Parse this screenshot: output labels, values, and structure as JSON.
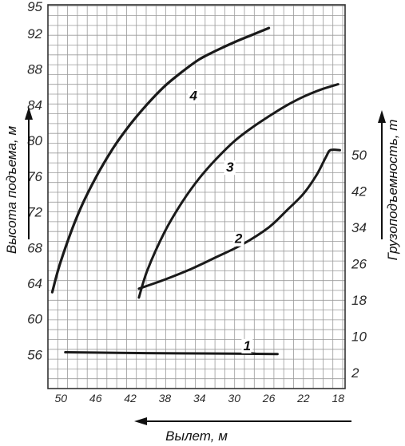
{
  "chart_data": {
    "type": "line",
    "xlabel": "Вылет, м",
    "ylabel_left": "Высота подъема, м",
    "ylabel_right": "Грузоподъемность, т",
    "x_ticks": [
      "50",
      "46",
      "42",
      "38",
      "34",
      "30",
      "26",
      "22",
      "18"
    ],
    "x_range": [
      51.5,
      17.2
    ],
    "left_ticks": [
      {
        "label": "95",
        "value": 95
      },
      {
        "label": "92",
        "value": 92
      },
      {
        "label": "88",
        "value": 88
      },
      {
        "label": "84",
        "value": 84
      },
      {
        "label": "80",
        "value": 80
      },
      {
        "label": "76",
        "value": 76
      },
      {
        "label": "72",
        "value": 72
      },
      {
        "label": "68",
        "value": 68
      },
      {
        "label": "64",
        "value": 64
      },
      {
        "label": "60",
        "value": 60
      },
      {
        "label": "56",
        "value": 56
      }
    ],
    "left_range": [
      52.2,
      95.2
    ],
    "right_ticks": [
      {
        "label": "50",
        "value": 50
      },
      {
        "label": "42",
        "value": 42
      },
      {
        "label": "34",
        "value": 34
      },
      {
        "label": "26",
        "value": 26
      },
      {
        "label": "18",
        "value": 18
      },
      {
        "label": "10",
        "value": 10
      },
      {
        "label": "2",
        "value": 2
      }
    ],
    "right_range": [
      -1.5,
      83
    ],
    "grid": true,
    "series": [
      {
        "name": "1",
        "axis": "right",
        "points": [
          [
            49.5,
            6.5
          ],
          [
            40,
            6.3
          ],
          [
            30,
            6.2
          ],
          [
            25,
            6.1
          ]
        ]
      },
      {
        "name": "2",
        "axis": "right",
        "points": [
          [
            41,
            20.5
          ],
          [
            38,
            22.5
          ],
          [
            35,
            24.8
          ],
          [
            32,
            27.5
          ],
          [
            29,
            30.3
          ],
          [
            26,
            34
          ],
          [
            24,
            37.6
          ],
          [
            22,
            41.4
          ],
          [
            20.5,
            45.5
          ],
          [
            19.4,
            49.5
          ],
          [
            18.9,
            51
          ],
          [
            17.8,
            51
          ]
        ]
      },
      {
        "name": "3",
        "axis": "left",
        "points": [
          [
            41,
            62.4
          ],
          [
            40,
            65.5
          ],
          [
            38,
            69.8
          ],
          [
            36,
            73.1
          ],
          [
            34,
            75.8
          ],
          [
            32,
            78
          ],
          [
            30,
            79.9
          ],
          [
            28,
            81.4
          ],
          [
            26,
            82.7
          ],
          [
            24,
            83.9
          ],
          [
            22,
            84.9
          ],
          [
            20,
            85.7
          ],
          [
            18,
            86.3
          ]
        ]
      },
      {
        "name": "4",
        "axis": "left",
        "points": [
          [
            51,
            63
          ],
          [
            50,
            66.5
          ],
          [
            48,
            71.8
          ],
          [
            46,
            75.8
          ],
          [
            44,
            79.1
          ],
          [
            42,
            81.8
          ],
          [
            40,
            84.1
          ],
          [
            38,
            86.1
          ],
          [
            36,
            87.7
          ],
          [
            34,
            89.1
          ],
          [
            32,
            90.1
          ],
          [
            30,
            91
          ],
          [
            28,
            91.8
          ],
          [
            26,
            92.6
          ]
        ]
      }
    ],
    "labels": [
      {
        "text": "1",
        "x": 28.5,
        "y_left": 56.5
      },
      {
        "text": "2",
        "x": 29.5,
        "y_left": 68.5
      },
      {
        "text": "3",
        "x": 30.5,
        "y_left": 76.5
      },
      {
        "text": "4",
        "x": 34.7,
        "y_left": 84.5
      }
    ]
  }
}
